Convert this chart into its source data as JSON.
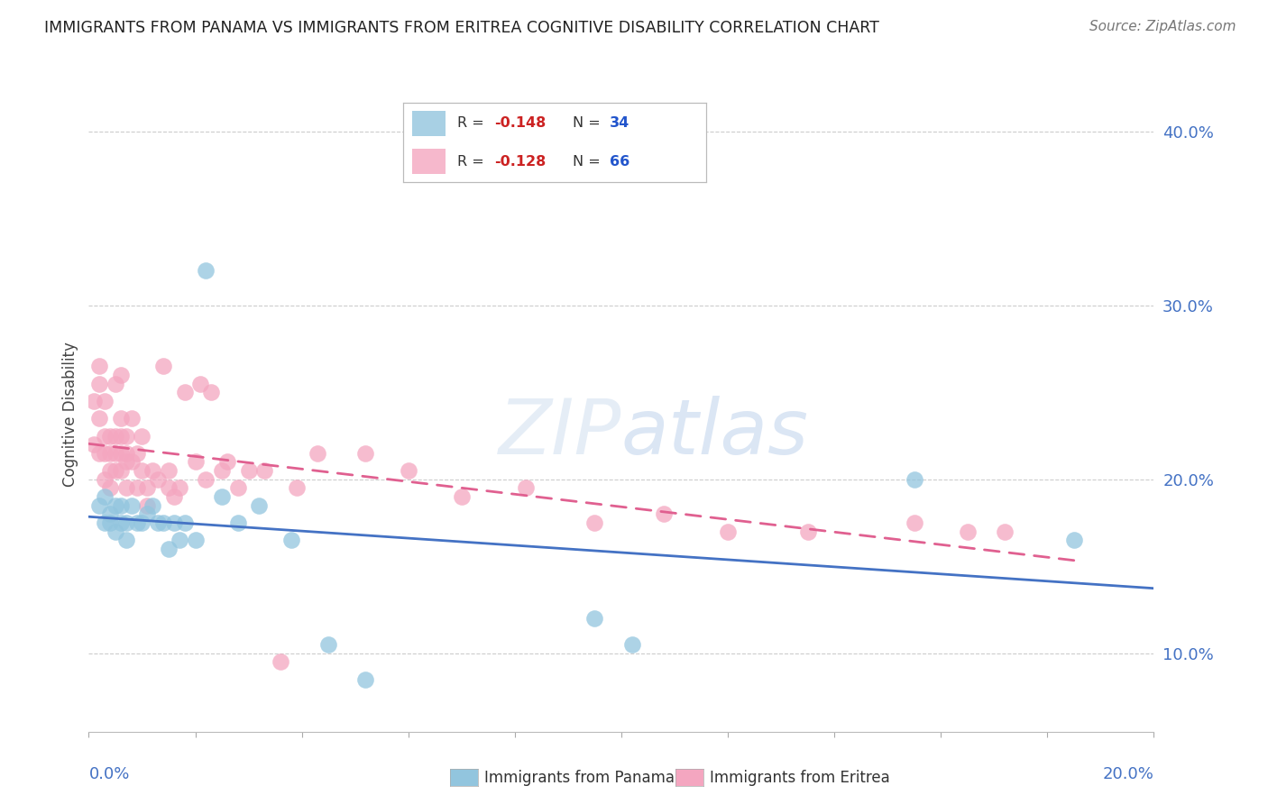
{
  "title": "IMMIGRANTS FROM PANAMA VS IMMIGRANTS FROM ERITREA COGNITIVE DISABILITY CORRELATION CHART",
  "source": "Source: ZipAtlas.com",
  "ylabel": "Cognitive Disability",
  "right_yticks": [
    "40.0%",
    "30.0%",
    "20.0%",
    "10.0%"
  ],
  "right_ytick_vals": [
    0.4,
    0.3,
    0.2,
    0.1
  ],
  "xlim": [
    0.0,
    0.2
  ],
  "ylim": [
    0.055,
    0.42
  ],
  "color_panama": "#92c5de",
  "color_eritrea": "#f4a6c0",
  "color_panama_line": "#4472c4",
  "color_eritrea_line": "#e06090",
  "panama_x": [
    0.002,
    0.003,
    0.003,
    0.004,
    0.004,
    0.005,
    0.005,
    0.006,
    0.006,
    0.007,
    0.007,
    0.008,
    0.009,
    0.01,
    0.011,
    0.012,
    0.013,
    0.014,
    0.015,
    0.016,
    0.017,
    0.018,
    0.02,
    0.022,
    0.025,
    0.028,
    0.032,
    0.038,
    0.045,
    0.052,
    0.095,
    0.102,
    0.155,
    0.185
  ],
  "panama_y": [
    0.185,
    0.175,
    0.19,
    0.18,
    0.175,
    0.185,
    0.17,
    0.175,
    0.185,
    0.175,
    0.165,
    0.185,
    0.175,
    0.175,
    0.18,
    0.185,
    0.175,
    0.175,
    0.16,
    0.175,
    0.165,
    0.175,
    0.165,
    0.32,
    0.19,
    0.175,
    0.185,
    0.165,
    0.105,
    0.085,
    0.12,
    0.105,
    0.2,
    0.165
  ],
  "eritrea_x": [
    0.001,
    0.001,
    0.002,
    0.002,
    0.002,
    0.002,
    0.003,
    0.003,
    0.003,
    0.003,
    0.004,
    0.004,
    0.004,
    0.004,
    0.005,
    0.005,
    0.005,
    0.005,
    0.006,
    0.006,
    0.006,
    0.006,
    0.006,
    0.007,
    0.007,
    0.007,
    0.007,
    0.008,
    0.008,
    0.009,
    0.009,
    0.01,
    0.01,
    0.011,
    0.011,
    0.012,
    0.013,
    0.014,
    0.015,
    0.015,
    0.016,
    0.017,
    0.018,
    0.02,
    0.021,
    0.022,
    0.023,
    0.025,
    0.026,
    0.028,
    0.03,
    0.033,
    0.036,
    0.039,
    0.043,
    0.052,
    0.06,
    0.07,
    0.082,
    0.095,
    0.108,
    0.12,
    0.135,
    0.155,
    0.165,
    0.172
  ],
  "eritrea_y": [
    0.22,
    0.245,
    0.235,
    0.215,
    0.255,
    0.265,
    0.245,
    0.225,
    0.2,
    0.215,
    0.205,
    0.215,
    0.195,
    0.225,
    0.255,
    0.225,
    0.205,
    0.215,
    0.225,
    0.205,
    0.215,
    0.235,
    0.26,
    0.215,
    0.21,
    0.225,
    0.195,
    0.235,
    0.21,
    0.215,
    0.195,
    0.205,
    0.225,
    0.185,
    0.195,
    0.205,
    0.2,
    0.265,
    0.195,
    0.205,
    0.19,
    0.195,
    0.25,
    0.21,
    0.255,
    0.2,
    0.25,
    0.205,
    0.21,
    0.195,
    0.205,
    0.205,
    0.095,
    0.195,
    0.215,
    0.215,
    0.205,
    0.19,
    0.195,
    0.175,
    0.18,
    0.17,
    0.17,
    0.175,
    0.17,
    0.17
  ]
}
